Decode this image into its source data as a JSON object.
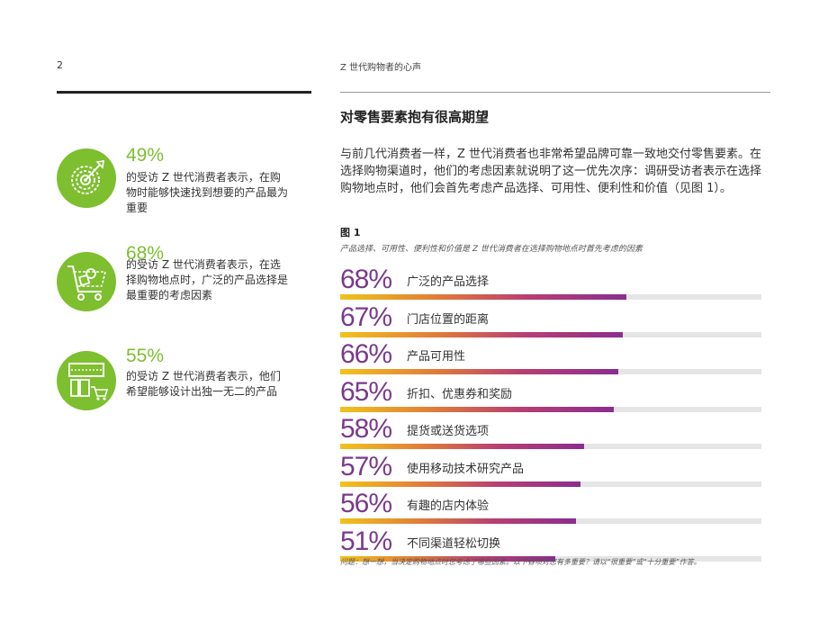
{
  "header": {
    "page_number": "2",
    "title": "Z 世代购物者的心声"
  },
  "stats": [
    {
      "percent": "49%",
      "text": "的受访 Z 世代消费者表示，在购物时能够快速找到想要的产品最为重要",
      "icon": "target-icon"
    },
    {
      "percent": "68%",
      "text": "的受访 Z 世代消费者表示，在选择购物地点时，广泛的产品选择是最重要的考虑因素",
      "icon": "shopping-cart-icon"
    },
    {
      "percent": "55%",
      "text": "的受访 Z 世代消费者表示，他们希望能够设计出独一无二的产品",
      "icon": "storefront-icon"
    }
  ],
  "section": {
    "title": "对零售要素抱有很高期望",
    "intro": "与前几代消费者一样，Z 世代消费者也非常希望品牌可靠一致地交付零售要素。在选择购物渠道时，他们的考虑因素就说明了这一优先次序：调研受访者表示在选择购物地点时，他们会首先考虑产品选择、可用性、便利性和价值（见图 1）。"
  },
  "figure": {
    "label": "图 1",
    "caption": "产品选择、可用性、便利性和价值是 Z 世代消费者在选择购物地点时首先考虑的因素",
    "footnote": "问题：想一想，当决定购物地点时您考虑了哪些因素。以下各项对您有多重要？请以“很重要”或“十分重要”作答。"
  },
  "colors": {
    "accent_green": "#7dbf2e",
    "accent_purple": "#7a3a8c",
    "gradient_start": "#f2c21b",
    "gradient_end": "#8a2d90"
  },
  "chart_data": {
    "type": "bar",
    "categories": [
      "广泛的产品选择",
      "门店位置的距离",
      "产品可用性",
      "折扣、优惠券和奖励",
      "提货或送货选项",
      "使用移动技术研究产品",
      "有趣的店内体验",
      "不同渠道轻松切换"
    ],
    "values": [
      68,
      67,
      66,
      65,
      58,
      57,
      56,
      51
    ],
    "labels": [
      "68%",
      "67%",
      "66%",
      "65%",
      "58%",
      "57%",
      "56%",
      "51%"
    ],
    "ylim": [
      0,
      100
    ]
  }
}
